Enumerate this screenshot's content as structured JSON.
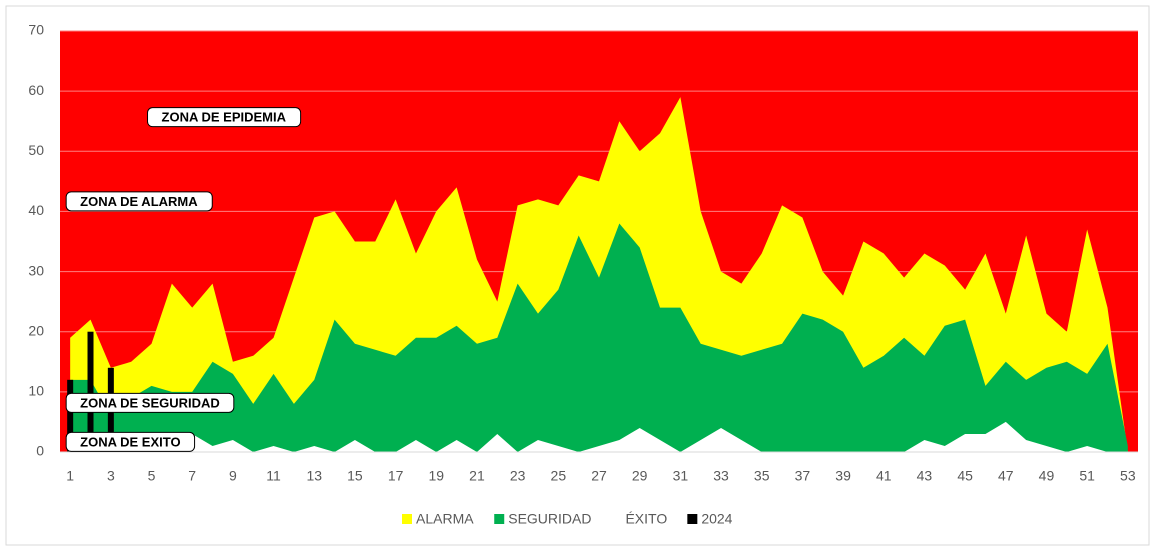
{
  "chart_data": {
    "type": "area",
    "categories": [
      1,
      null,
      3,
      null,
      5,
      null,
      7,
      null,
      9,
      null,
      11,
      null,
      13,
      null,
      15,
      null,
      17,
      null,
      19,
      null,
      21,
      null,
      23,
      null,
      25,
      null,
      27,
      null,
      29,
      null,
      31,
      null,
      33,
      null,
      35,
      null,
      37,
      null,
      39,
      null,
      41,
      null,
      43,
      null,
      45,
      null,
      47,
      null,
      49,
      null,
      51,
      null,
      53
    ],
    "series": [
      {
        "name": "ALARMA",
        "color": "#ffff00",
        "kind": "area",
        "values": [
          19,
          22,
          14,
          15,
          18,
          28,
          24,
          28,
          15,
          16,
          19,
          29,
          39,
          40,
          35,
          35,
          42,
          33,
          40,
          44,
          32,
          25,
          41,
          42,
          41,
          46,
          45,
          55,
          50,
          53,
          59,
          40,
          30,
          28,
          33,
          41,
          39,
          30,
          26,
          35,
          33,
          29,
          33,
          31,
          27,
          33,
          23,
          36,
          23,
          20,
          37,
          24,
          0
        ]
      },
      {
        "name": "SEGURIDAD",
        "color": "#00b050",
        "kind": "area",
        "values": [
          12,
          12,
          6,
          9,
          11,
          10,
          10,
          15,
          13,
          8,
          13,
          8,
          12,
          22,
          18,
          17,
          16,
          19,
          19,
          21,
          18,
          19,
          28,
          23,
          27,
          36,
          29,
          38,
          34,
          24,
          24,
          18,
          17,
          16,
          17,
          18,
          23,
          22,
          20,
          14,
          16,
          19,
          16,
          21,
          22,
          11,
          15,
          12,
          14,
          15,
          13,
          18,
          1
        ]
      },
      {
        "name": "ÉXITO",
        "color": "#ffffff",
        "kind": "area",
        "values": [
          1,
          2,
          1,
          0,
          2,
          2,
          3,
          1,
          2,
          0,
          1,
          0,
          1,
          0,
          2,
          0,
          0,
          2,
          0,
          2,
          0,
          3,
          0,
          2,
          1,
          0,
          1,
          2,
          4,
          2,
          0,
          2,
          4,
          2,
          0,
          0,
          0,
          0,
          0,
          0,
          0,
          0,
          2,
          1,
          3,
          3,
          5,
          2,
          1,
          0,
          1,
          0,
          0
        ]
      },
      {
        "name": "2024",
        "color": "#000000",
        "kind": "bar",
        "values": [
          12,
          20,
          14,
          null,
          null,
          null,
          null,
          null,
          null,
          null,
          null,
          null,
          null,
          null,
          null,
          null,
          null,
          null,
          null,
          null,
          null,
          null,
          null,
          null,
          null,
          null,
          null,
          null,
          null,
          null,
          null,
          null,
          null,
          null,
          null,
          null,
          null,
          null,
          null,
          null,
          null,
          null,
          null,
          null,
          null,
          null,
          null,
          null,
          null,
          null,
          null,
          null,
          null
        ]
      }
    ],
    "background": "#ff0000",
    "ylim": [
      0,
      70
    ],
    "yticks": [
      0,
      10,
      20,
      30,
      40,
      50,
      60,
      70
    ],
    "grid": true,
    "legend": "bottom",
    "annotations": [
      {
        "text": "ZONA DE EPIDEMIA",
        "category": 5,
        "value": 55.5
      },
      {
        "text": "ZONA DE ALARMA",
        "category": 24,
        "value": 41.5
      },
      {
        "text": "ZONA DE SEGURIDAD",
        "category": 12,
        "value": 8
      },
      {
        "text": "ZONA DE EXITO",
        "category": 26,
        "value": 1.5
      }
    ]
  }
}
